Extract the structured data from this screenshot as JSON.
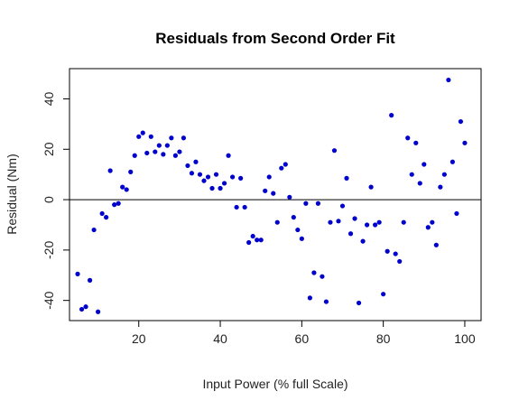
{
  "chart_data": {
    "type": "scatter",
    "title": "Residuals from Second Order Fit",
    "xlabel": "Input Power (% full Scale)",
    "ylabel": "Residual (Nm)",
    "xlim": [
      3,
      104
    ],
    "ylim": [
      -48,
      52
    ],
    "xticks": [
      20,
      40,
      60,
      80,
      100
    ],
    "yticks": [
      -40,
      -20,
      0,
      20,
      40
    ],
    "xtick_labels": [
      "20",
      "40",
      "60",
      "80",
      "100"
    ],
    "ytick_labels": [
      "-40",
      "-20",
      "0",
      "20",
      "40"
    ],
    "reference_line_y": 0,
    "grid": false,
    "point_color": "#0000cc",
    "series": [
      {
        "x": [
          5,
          6,
          7,
          8,
          9,
          10,
          11,
          12,
          13,
          14,
          15,
          16,
          17,
          18,
          19,
          20,
          21,
          22,
          23,
          24,
          25,
          26,
          27,
          28,
          29,
          30,
          31,
          32,
          33,
          34,
          35,
          36,
          37,
          38,
          39,
          40,
          41,
          42,
          43,
          44,
          45,
          46,
          47,
          48,
          49,
          50,
          51,
          52,
          53,
          54,
          55,
          56,
          57,
          58,
          59,
          60,
          61,
          62,
          63,
          64,
          65,
          66,
          67,
          68,
          69,
          70,
          71,
          72,
          73,
          74,
          75,
          76,
          77,
          78,
          79,
          80,
          81,
          82,
          83,
          84,
          85,
          86,
          87,
          88,
          89,
          90,
          91,
          92,
          93,
          94,
          95,
          96,
          97,
          98,
          99,
          100
        ],
        "y": [
          -29.5,
          -43.5,
          -42.5,
          -32,
          -12,
          -44.5,
          -5.5,
          -7,
          11.5,
          -2,
          -1.5,
          5,
          4,
          11,
          17.5,
          25,
          26.5,
          18.5,
          25,
          19,
          21.5,
          18,
          21.5,
          24.5,
          17.5,
          19,
          24.5,
          13.5,
          10.5,
          15,
          10,
          7.5,
          9,
          4.5,
          10,
          4.5,
          6.5,
          17.5,
          9,
          -3,
          8.5,
          -3,
          -17,
          -14.5,
          -16,
          -16,
          3.5,
          9,
          2.5,
          -9,
          12.5,
          14,
          1,
          -7,
          -12,
          -15.5,
          -1.5,
          -39,
          -29,
          -1.5,
          -30.5,
          -40.5,
          -9,
          19.5,
          -8.5,
          -2.5,
          8.5,
          -13.5,
          -7.5,
          -41,
          -16.5,
          -10,
          5,
          -10,
          -9,
          -37.5,
          -20.5,
          33.5,
          -21.5,
          -24.5,
          -9,
          24.5,
          10,
          22.5,
          6.5,
          14,
          -11,
          -9,
          -18,
          5,
          10,
          47.5,
          15,
          -5.5,
          31,
          22.5
        ]
      }
    ]
  }
}
